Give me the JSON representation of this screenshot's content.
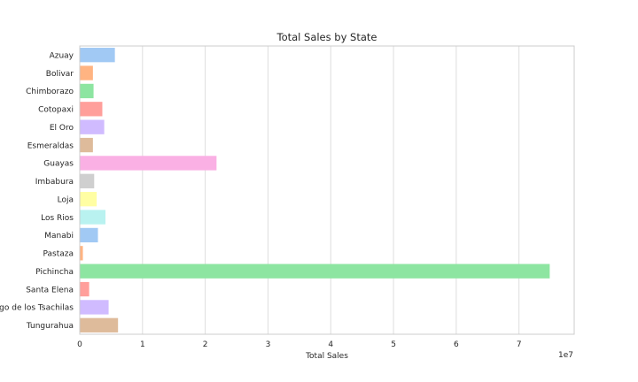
{
  "chart_data": {
    "type": "bar",
    "orientation": "horizontal",
    "title": "Total Sales by State",
    "xlabel": "Total Sales",
    "ylabel": "",
    "offset_text": "1e7",
    "xlim": [
      0,
      7.88
    ],
    "xticks": [
      "0",
      "1",
      "2",
      "3",
      "4",
      "5",
      "6",
      "7"
    ],
    "grid": true,
    "categories": [
      "Azuay",
      "Bolivar",
      "Chimborazo",
      "Cotopaxi",
      "El Oro",
      "Esmeraldas",
      "Guayas",
      "Imbabura",
      "Loja",
      "Los Rios",
      "Manabi",
      "Pastaza",
      "Pichincha",
      "Santa Elena",
      "Santo Domingo de los Tsachilas",
      "Tungurahua"
    ],
    "values": [
      0.56,
      0.21,
      0.22,
      0.36,
      0.39,
      0.21,
      2.18,
      0.23,
      0.27,
      0.41,
      0.29,
      0.05,
      7.49,
      0.15,
      0.46,
      0.61
    ],
    "colors": [
      "#a1c9f4",
      "#ffb482",
      "#8de5a1",
      "#ff9f9b",
      "#d0bbff",
      "#debb9b",
      "#fab0e4",
      "#cfcfcf",
      "#fffea3",
      "#b9f2f0",
      "#a1c9f4",
      "#ffb482",
      "#8de5a1",
      "#ff9f9b",
      "#d0bbff",
      "#debb9b"
    ]
  }
}
